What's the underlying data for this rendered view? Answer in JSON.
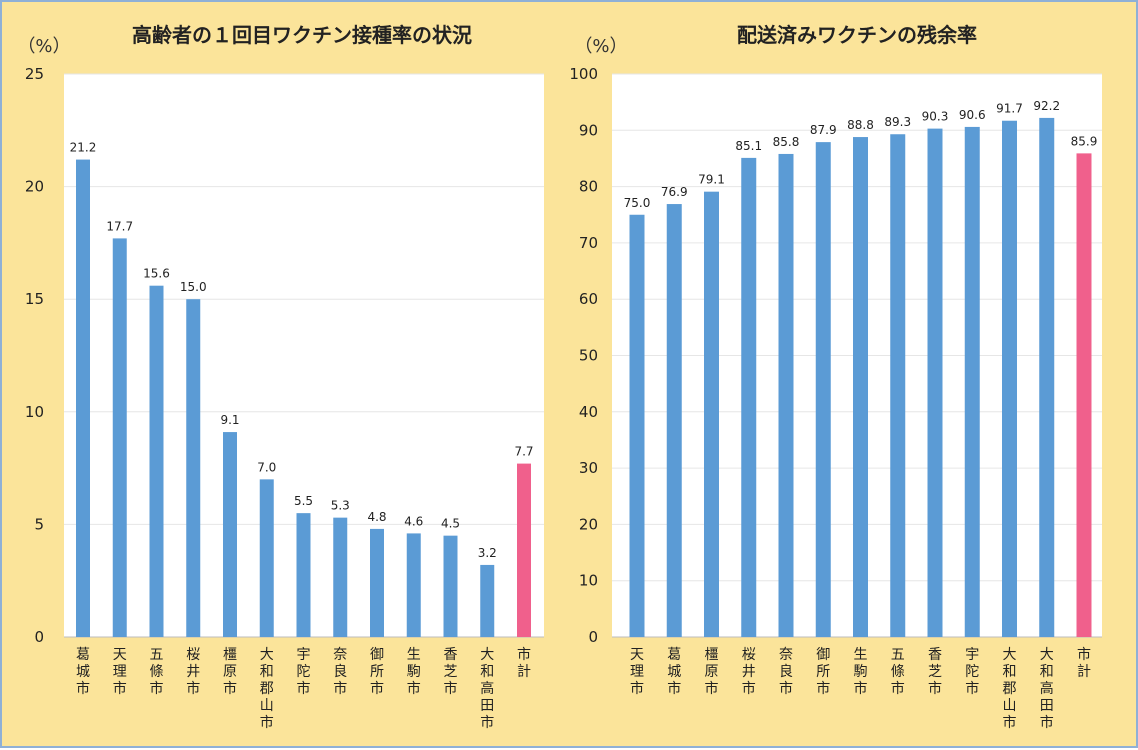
{
  "colors": {
    "background": "#fbe49a",
    "frame_border": "#8fb0d6",
    "bar": "#5b9bd5",
    "total_bar": "#f0608c"
  },
  "chart_data": [
    {
      "type": "bar",
      "title": "高齢者の１回目ワクチン接種率の状況",
      "unit": "（%）",
      "ylim": [
        0,
        25
      ],
      "yticks": [
        0,
        5,
        10,
        15,
        20,
        25
      ],
      "grid": true,
      "categories": [
        "葛城市",
        "天理市",
        "五條市",
        "桜井市",
        "橿原市",
        "大和郡山市",
        "宇陀市",
        "奈良市",
        "御所市",
        "生駒市",
        "香芝市",
        "大和高田市",
        "市計"
      ],
      "values": [
        21.2,
        17.7,
        15.6,
        15.0,
        9.1,
        7.0,
        5.5,
        5.3,
        4.8,
        4.6,
        4.5,
        3.2,
        7.7
      ],
      "value_labels": [
        "21.2",
        "17.7",
        "15.6",
        "15.0",
        "9.1",
        "7.0",
        "5.5",
        "5.3",
        "4.8",
        "4.6",
        "4.5",
        "3.2",
        "7.7"
      ],
      "highlight_category": "市計"
    },
    {
      "type": "bar",
      "title": "配送済みワクチンの残余率",
      "unit": "（%）",
      "ylim": [
        0,
        100
      ],
      "yticks": [
        0,
        10,
        20,
        30,
        40,
        50,
        60,
        70,
        80,
        90,
        100
      ],
      "grid": true,
      "categories": [
        "天理市",
        "葛城市",
        "橿原市",
        "桜井市",
        "奈良市",
        "御所市",
        "生駒市",
        "五條市",
        "香芝市",
        "宇陀市",
        "大和郡山市",
        "大和高田市",
        "市計"
      ],
      "values": [
        75.0,
        76.9,
        79.1,
        85.1,
        85.8,
        87.9,
        88.8,
        89.3,
        90.3,
        90.6,
        91.7,
        92.2,
        85.9
      ],
      "value_labels": [
        "75.0",
        "76.9",
        "79.1",
        "85.1",
        "85.8",
        "87.9",
        "88.8",
        "89.3",
        "90.3",
        "90.6",
        "91.7",
        "92.2",
        "85.9"
      ],
      "highlight_category": "市計"
    }
  ]
}
